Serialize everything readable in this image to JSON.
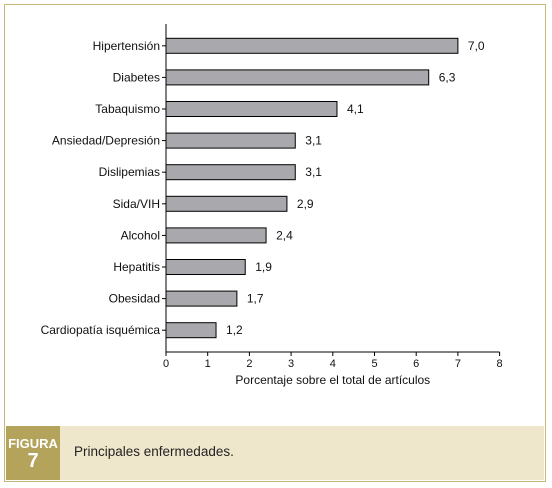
{
  "chart_data": {
    "type": "bar",
    "orientation": "horizontal",
    "categories": [
      "Hipertensión",
      "Diabetes",
      "Tabaquismo",
      "Ansiedad/Depresión",
      "Dislipemias",
      "Sida/VIH",
      "Alcohol",
      "Hepatitis",
      "Obesidad",
      "Cardiopatía isquémica"
    ],
    "values": [
      7.0,
      6.3,
      4.1,
      3.1,
      3.1,
      2.9,
      2.4,
      1.9,
      1.7,
      1.2
    ],
    "value_labels": [
      "7,0",
      "6,3",
      "4,1",
      "3,1",
      "3,1",
      "2,9",
      "2,4",
      "1,9",
      "1,7",
      "1,2"
    ],
    "xlabel": "Porcentaje sobre el total de artículos",
    "ylabel": "",
    "xlim": [
      0,
      8
    ],
    "xticks": [
      "0",
      "1",
      "2",
      "3",
      "4",
      "5",
      "6",
      "7",
      "8"
    ],
    "grid": false,
    "bar_color": "#a9a9ad"
  },
  "caption": {
    "figure_word": "FIGURA",
    "figure_number": "7",
    "text": "Principales enfermedades."
  },
  "colors": {
    "frame_border": "#c9b77a",
    "caption_band": "#efe7cc",
    "figure_box": "#b4a35b"
  }
}
